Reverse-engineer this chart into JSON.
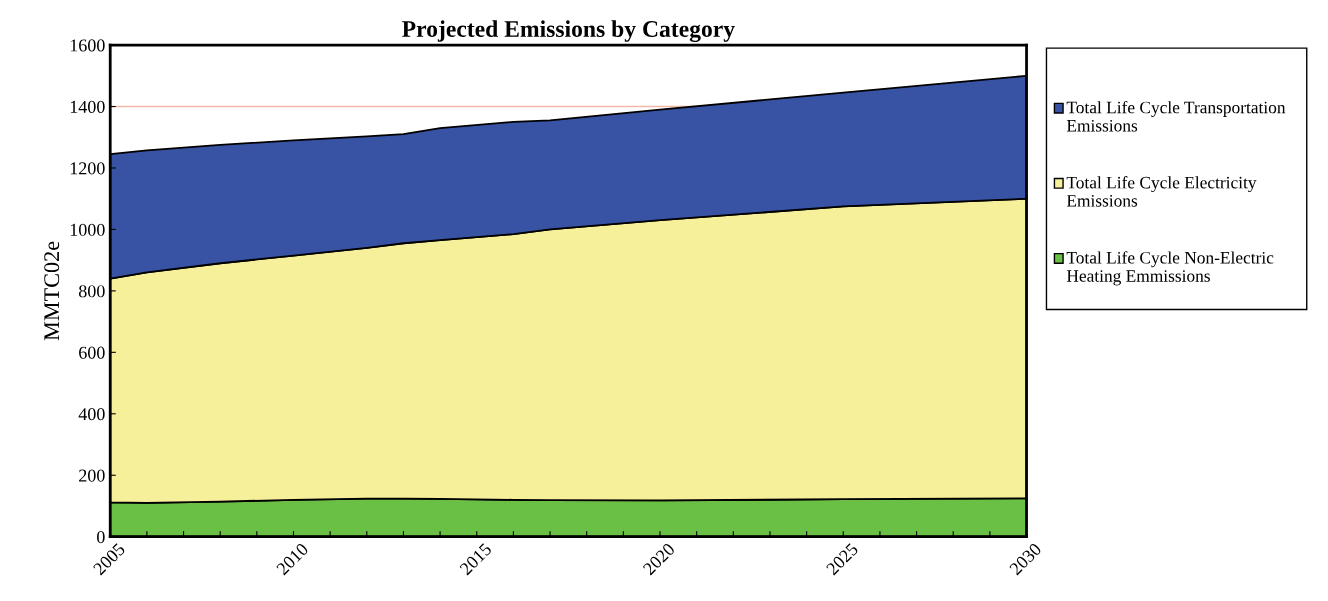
{
  "chart_data": {
    "type": "area",
    "stacked": true,
    "title": "Projected Emissions by Category",
    "ylabel": "MMTC02e",
    "x": [
      2005,
      2006,
      2008,
      2010,
      2012,
      2013,
      2014,
      2016,
      2017,
      2020,
      2025,
      2030
    ],
    "series": [
      {
        "name": "Total Life Cycle Non-Electric Heating Emmissions",
        "color": "#6abf45",
        "values": [
          112,
          110,
          114,
          120,
          124,
          124,
          123,
          120,
          119,
          118,
          122,
          125
        ]
      },
      {
        "name": "Total Life Cycle Electricity Emissions",
        "color": "#f6f09a",
        "values": [
          728,
          750,
          776,
          795,
          816,
          831,
          842,
          865,
          881,
          912,
          953,
          975
        ]
      },
      {
        "name": "Total Life Cycle Transportation Emissions",
        "color": "#3953a4",
        "values": [
          405,
          397,
          385,
          375,
          363,
          355,
          365,
          365,
          355,
          360,
          370,
          400
        ]
      }
    ],
    "xlim": [
      2005,
      2030
    ],
    "xticks": [
      2005,
      {
        "value": 2006,
        "label": null
      },
      {
        "value": 2007,
        "label": null
      },
      {
        "value": 2008,
        "label": null
      },
      {
        "value": 2009,
        "label": null
      },
      2010,
      {
        "value": 2011,
        "label": null
      },
      {
        "value": 2012,
        "label": null
      },
      {
        "value": 2013,
        "label": null
      },
      {
        "value": 2014,
        "label": null
      },
      2015,
      {
        "value": 2016,
        "label": null
      },
      {
        "value": 2017,
        "label": null
      },
      {
        "value": 2018,
        "label": null
      },
      {
        "value": 2019,
        "label": null
      },
      2020,
      {
        "value": 2021,
        "label": null
      },
      {
        "value": 2022,
        "label": null
      },
      {
        "value": 2023,
        "label": null
      },
      {
        "value": 2024,
        "label": null
      },
      2025,
      {
        "value": 2026,
        "label": null
      },
      {
        "value": 2027,
        "label": null
      },
      {
        "value": 2028,
        "label": null
      },
      {
        "value": 2029,
        "label": null
      },
      2030
    ],
    "ylim": [
      0,
      1600
    ],
    "yticks": [
      0,
      200,
      400,
      600,
      800,
      1000,
      1200,
      1400,
      1600
    ],
    "ref_lines": [
      {
        "axis": "y",
        "value": 1400,
        "color": "#f4b8a8"
      }
    ],
    "grid": false,
    "legend": "right"
  }
}
